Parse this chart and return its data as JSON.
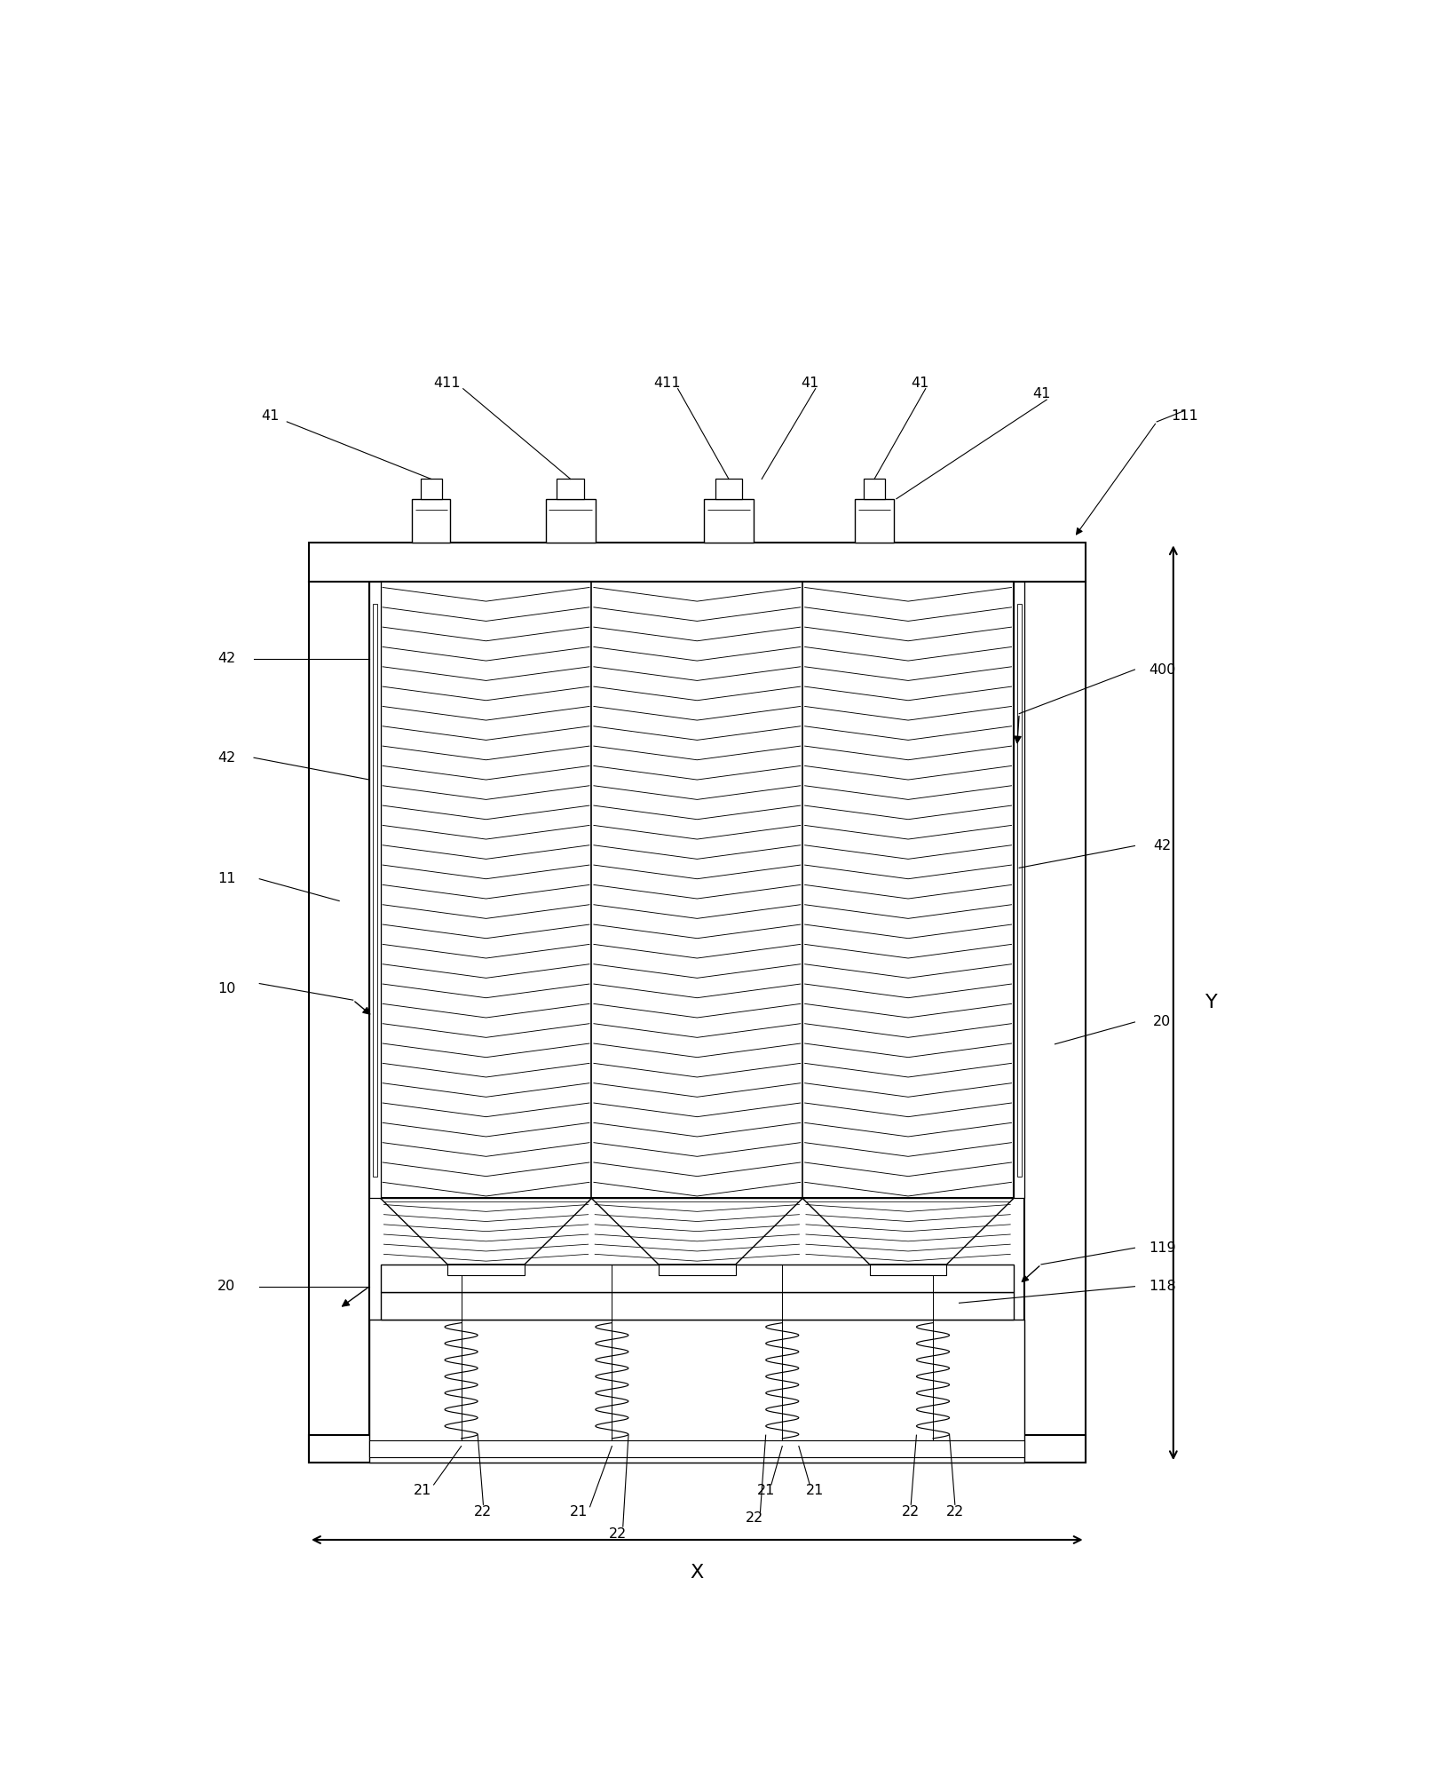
{
  "bg": "#ffffff",
  "lc": "#000000",
  "fig_w": 16.11,
  "fig_h": 20.18,
  "label_41a": "41",
  "label_411a": "411",
  "label_411b": "411",
  "label_41b": "41",
  "label_41c": "41",
  "label_41d": "41",
  "label_111": "111",
  "label_42a": "42",
  "label_42b": "42",
  "label_400": "400",
  "label_42c": "42",
  "label_11": "11",
  "label_10": "10",
  "label_20a": "20",
  "label_20b": "20",
  "label_119": "119",
  "label_118": "118",
  "label_21a": "21",
  "label_21b": "21",
  "label_21c": "21",
  "label_21d": "21",
  "label_22a": "22",
  "label_22b": "22",
  "label_22c": "22",
  "label_22d": "22",
  "label_22e": "22",
  "label_X": "X",
  "label_Y": "Y"
}
